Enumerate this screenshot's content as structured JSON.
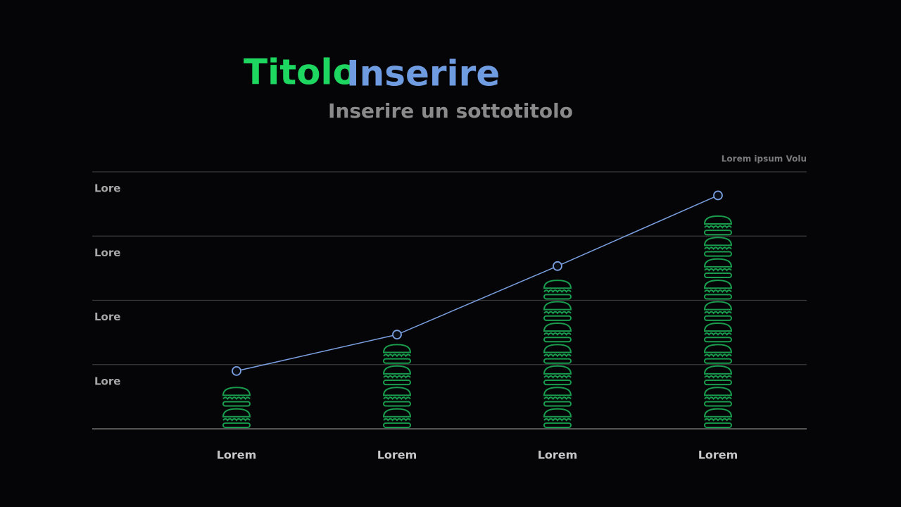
{
  "chart_data": {
    "type": "pictograph",
    "title_parts": [
      {
        "text": "Titolo",
        "color": "#1ed760"
      },
      {
        "text": "Inserire",
        "color": "#6f9be0"
      }
    ],
    "subtitle": "Inserire un sottotitolo",
    "annotation": "Lorem ipsum Volu",
    "categories": [
      "Lorem",
      "Lorem",
      "Lorem",
      "Lorem"
    ],
    "series": [
      {
        "type": "icons",
        "color": "#1a9c4e",
        "values": [
          2,
          4,
          7,
          10
        ]
      },
      {
        "type": "line",
        "color": "#7a9fe0",
        "values": [
          2.7,
          4.4,
          7.6,
          10.9
        ]
      }
    ],
    "ylim": [
      0,
      12
    ],
    "yticks": [
      {
        "value": 3,
        "label": "Lore"
      },
      {
        "value": 6,
        "label": "Lore"
      },
      {
        "value": 9,
        "label": "Lore"
      },
      {
        "value": 12,
        "label": "Lore"
      }
    ],
    "grid": true
  }
}
